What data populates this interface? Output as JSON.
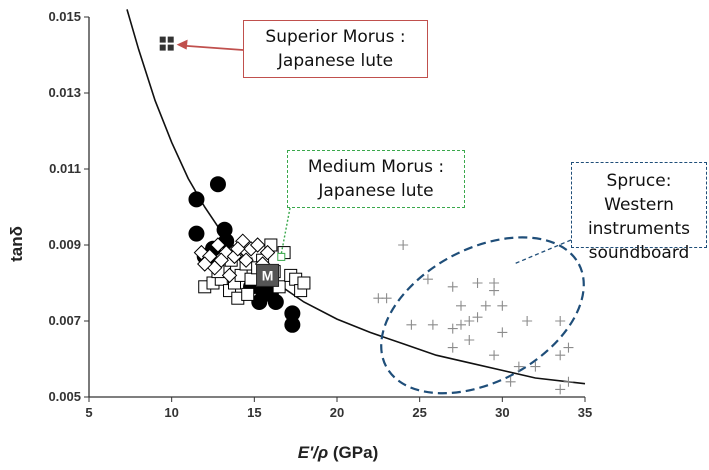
{
  "chart_data": {
    "type": "scatter",
    "xlabel_main": "E'/ρ",
    "xlabel_unit": " (GPa)",
    "ylabel": "tanδ",
    "xlim": [
      5,
      35
    ],
    "ylim": [
      0.005,
      0.015
    ],
    "x_ticks": [
      5,
      10,
      15,
      20,
      25,
      30,
      35
    ],
    "y_ticks": [
      0.005,
      0.007,
      0.009,
      0.011,
      0.013,
      0.015
    ],
    "y_tick_labels": [
      "0.005",
      "0.007",
      "0.009",
      "0.011",
      "0.013",
      "0.015"
    ],
    "series": [
      {
        "marker": "filled-circle",
        "color": "#000000",
        "points": [
          [
            11.5,
            0.0102
          ],
          [
            12.8,
            0.0106
          ],
          [
            11.5,
            0.0093
          ],
          [
            12.5,
            0.0089
          ],
          [
            13.2,
            0.0094
          ],
          [
            13.3,
            0.0091
          ],
          [
            12.2,
            0.0086
          ],
          [
            12.0,
            0.0087
          ],
          [
            15.0,
            0.008
          ],
          [
            15.3,
            0.0075
          ],
          [
            16.0,
            0.0077
          ],
          [
            16.3,
            0.0075
          ],
          [
            17.3,
            0.0072
          ],
          [
            17.3,
            0.0069
          ],
          [
            15.5,
            0.0078
          ],
          [
            14.8,
            0.0079
          ]
        ]
      },
      {
        "marker": "open-square",
        "color": "#000000",
        "points": [
          [
            12.0,
            0.0079
          ],
          [
            12.5,
            0.008
          ],
          [
            13.0,
            0.0081
          ],
          [
            13.5,
            0.0078
          ],
          [
            13.8,
            0.008
          ],
          [
            14.2,
            0.0082
          ],
          [
            14.5,
            0.0085
          ],
          [
            14.8,
            0.0081
          ],
          [
            15.5,
            0.0086
          ],
          [
            15.8,
            0.0082
          ],
          [
            16.2,
            0.0083
          ],
          [
            16.5,
            0.0079
          ],
          [
            17.2,
            0.0082
          ],
          [
            17.5,
            0.0081
          ],
          [
            17.8,
            0.0078
          ],
          [
            18.0,
            0.008
          ],
          [
            13.2,
            0.0084
          ],
          [
            14.0,
            0.0076
          ],
          [
            15.2,
            0.0084
          ],
          [
            12.8,
            0.0083
          ],
          [
            16.8,
            0.0088
          ],
          [
            14.6,
            0.0077
          ],
          [
            13.6,
            0.0086
          ],
          [
            16.0,
            0.009
          ]
        ]
      },
      {
        "marker": "open-diamond",
        "color": "#000000",
        "points": [
          [
            11.8,
            0.0088
          ],
          [
            12.3,
            0.0087
          ],
          [
            12.8,
            0.009
          ],
          [
            13.3,
            0.0088
          ],
          [
            13.8,
            0.0087
          ],
          [
            14.3,
            0.0091
          ],
          [
            14.8,
            0.0089
          ],
          [
            15.2,
            0.009
          ],
          [
            12.6,
            0.0084
          ],
          [
            13.5,
            0.0082
          ],
          [
            14.5,
            0.0086
          ],
          [
            15.5,
            0.0085
          ],
          [
            13.0,
            0.0086
          ],
          [
            14.0,
            0.0089
          ],
          [
            15.8,
            0.0088
          ],
          [
            12.0,
            0.0085
          ]
        ]
      },
      {
        "marker": "plus",
        "color": "#8c8c8c",
        "points": [
          [
            24.0,
            0.009
          ],
          [
            25.5,
            0.0081
          ],
          [
            27.0,
            0.0079
          ],
          [
            28.5,
            0.008
          ],
          [
            29.5,
            0.008
          ],
          [
            29.5,
            0.0078
          ],
          [
            22.5,
            0.0076
          ],
          [
            23.0,
            0.0076
          ],
          [
            24.5,
            0.0069
          ],
          [
            25.8,
            0.0069
          ],
          [
            27.0,
            0.0068
          ],
          [
            27.5,
            0.0069
          ],
          [
            28.0,
            0.007
          ],
          [
            28.5,
            0.0071
          ],
          [
            27.5,
            0.0074
          ],
          [
            29.0,
            0.0074
          ],
          [
            30.0,
            0.0074
          ],
          [
            30.0,
            0.0067
          ],
          [
            31.5,
            0.007
          ],
          [
            33.5,
            0.007
          ],
          [
            28.0,
            0.0065
          ],
          [
            29.5,
            0.0061
          ],
          [
            31.0,
            0.0058
          ],
          [
            32.0,
            0.0058
          ],
          [
            33.5,
            0.0061
          ],
          [
            34.0,
            0.0063
          ],
          [
            30.5,
            0.0054
          ],
          [
            33.5,
            0.0052
          ],
          [
            34.0,
            0.0054
          ],
          [
            27.0,
            0.0063
          ]
        ]
      },
      {
        "marker": "filled-square-group",
        "color": "#333333",
        "points": [
          [
            9.7,
            0.0143
          ]
        ]
      },
      {
        "marker": "labelled-square",
        "color": "#555555",
        "label": "M",
        "points": [
          [
            15.8,
            0.0082
          ]
        ]
      }
    ],
    "trend_curve": {
      "points": [
        [
          7.3,
          0.0152
        ],
        [
          8,
          0.01415
        ],
        [
          9,
          0.0128
        ],
        [
          10,
          0.0117
        ],
        [
          11,
          0.01075
        ],
        [
          12,
          0.01
        ],
        [
          13,
          0.00935
        ],
        [
          14,
          0.00885
        ],
        [
          15,
          0.00845
        ],
        [
          16,
          0.0081
        ],
        [
          17,
          0.0078
        ],
        [
          18,
          0.0075
        ],
        [
          20,
          0.00705
        ],
        [
          22,
          0.0067
        ],
        [
          24,
          0.0064
        ],
        [
          26,
          0.0061
        ],
        [
          28,
          0.0059
        ],
        [
          30,
          0.0057
        ],
        [
          32,
          0.0055
        ],
        [
          34,
          0.0054
        ],
        [
          35,
          0.00535
        ]
      ]
    },
    "ellipse": {
      "cx": 28.8,
      "cy": 0.00715,
      "rx": 6.6,
      "ry": 0.00175,
      "angle": -28,
      "color": "#1f4e79"
    },
    "annotations": [
      {
        "lines": [
          "Superior Morus :",
          "Japanese lute"
        ],
        "arrow_to": [
          10.3,
          0.0143
        ],
        "color": "#c0504d"
      },
      {
        "lines": [
          "Medium Morus :",
          "Japanese lute"
        ],
        "arrow_to": [
          16.6,
          0.0087
        ],
        "color": "#3aa84c"
      },
      {
        "lines": [
          "Spruce:",
          "Western",
          "instruments",
          "soundboard"
        ],
        "arrow_to": [
          30.7,
          0.0085
        ],
        "color": "#1f4e79"
      }
    ]
  }
}
